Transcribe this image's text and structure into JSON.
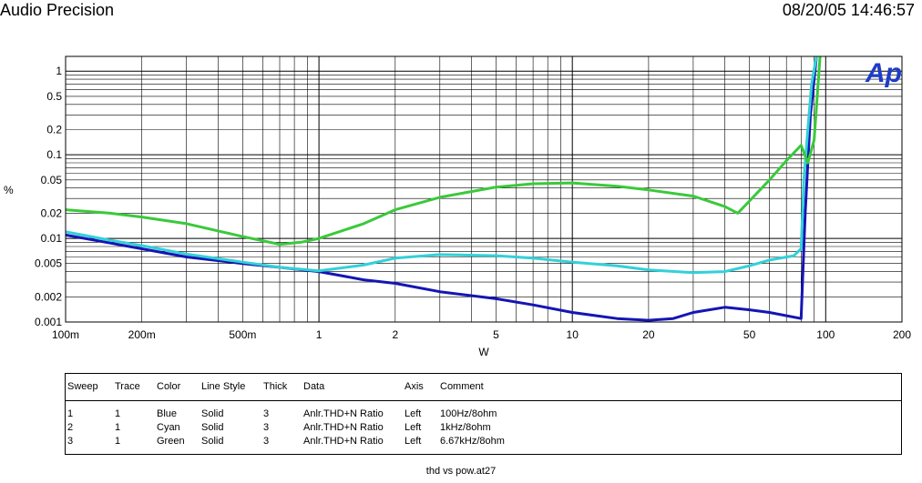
{
  "header": {
    "title": "Audio Precision",
    "timestamp": "08/20/05 14:46:57"
  },
  "logo_text": "Ap",
  "chart_data": {
    "type": "line",
    "xlabel": "W",
    "ylabel": "%",
    "x_scale": "log",
    "y_scale": "log",
    "xlim": [
      0.1,
      200
    ],
    "ylim": [
      0.001,
      1.5
    ],
    "x_ticks": [
      {
        "v": 0.1,
        "label": "100m"
      },
      {
        "v": 0.2,
        "label": "200m"
      },
      {
        "v": 0.5,
        "label": "500m"
      },
      {
        "v": 1,
        "label": "1"
      },
      {
        "v": 2,
        "label": "2"
      },
      {
        "v": 5,
        "label": "5"
      },
      {
        "v": 10,
        "label": "10"
      },
      {
        "v": 20,
        "label": "20"
      },
      {
        "v": 50,
        "label": "50"
      },
      {
        "v": 100,
        "label": "100"
      },
      {
        "v": 200,
        "label": "200"
      }
    ],
    "y_ticks": [
      {
        "v": 1,
        "label": "1"
      },
      {
        "v": 0.5,
        "label": "0.5"
      },
      {
        "v": 0.2,
        "label": "0.2"
      },
      {
        "v": 0.1,
        "label": "0.1"
      },
      {
        "v": 0.05,
        "label": "0.05"
      },
      {
        "v": 0.02,
        "label": "0.02"
      },
      {
        "v": 0.01,
        "label": "0.01"
      },
      {
        "v": 0.005,
        "label": "0.005"
      },
      {
        "v": 0.002,
        "label": "0.002"
      },
      {
        "v": 0.001,
        "label": "0.001"
      }
    ],
    "grid": true,
    "series": [
      {
        "color": "#1515b4",
        "points": [
          [
            0.1,
            0.011
          ],
          [
            0.15,
            0.0088
          ],
          [
            0.2,
            0.0075
          ],
          [
            0.3,
            0.006
          ],
          [
            0.5,
            0.005
          ],
          [
            0.7,
            0.0045
          ],
          [
            1,
            0.004
          ],
          [
            1.5,
            0.0032
          ],
          [
            2,
            0.0029
          ],
          [
            3,
            0.0023
          ],
          [
            5,
            0.0019
          ],
          [
            7,
            0.0016
          ],
          [
            10,
            0.0013
          ],
          [
            15,
            0.0011
          ],
          [
            20,
            0.00105
          ],
          [
            25,
            0.0011
          ],
          [
            30,
            0.0013
          ],
          [
            40,
            0.0015
          ],
          [
            50,
            0.0014
          ],
          [
            60,
            0.0013
          ],
          [
            80,
            0.0011
          ],
          [
            83,
            0.02
          ],
          [
            87,
            0.3
          ],
          [
            92,
            1.5
          ]
        ]
      },
      {
        "color": "#33d0d8",
        "points": [
          [
            0.1,
            0.012
          ],
          [
            0.15,
            0.0095
          ],
          [
            0.2,
            0.0082
          ],
          [
            0.3,
            0.0065
          ],
          [
            0.5,
            0.0052
          ],
          [
            0.7,
            0.0045
          ],
          [
            1,
            0.0041
          ],
          [
            1.5,
            0.0048
          ],
          [
            2,
            0.0058
          ],
          [
            3,
            0.0064
          ],
          [
            5,
            0.0062
          ],
          [
            7,
            0.0058
          ],
          [
            10,
            0.0052
          ],
          [
            15,
            0.0047
          ],
          [
            20,
            0.0042
          ],
          [
            30,
            0.0039
          ],
          [
            40,
            0.004
          ],
          [
            50,
            0.0047
          ],
          [
            60,
            0.0055
          ],
          [
            75,
            0.0062
          ],
          [
            80,
            0.0075
          ],
          [
            82,
            0.05
          ],
          [
            85,
            0.2
          ],
          [
            88,
            0.7
          ],
          [
            92,
            1.5
          ]
        ]
      },
      {
        "color": "#3ac93a",
        "points": [
          [
            0.1,
            0.022
          ],
          [
            0.15,
            0.02
          ],
          [
            0.2,
            0.018
          ],
          [
            0.3,
            0.015
          ],
          [
            0.5,
            0.0105
          ],
          [
            0.7,
            0.0085
          ],
          [
            0.85,
            0.009
          ],
          [
            1,
            0.01
          ],
          [
            1.5,
            0.015
          ],
          [
            2,
            0.022
          ],
          [
            3,
            0.031
          ],
          [
            5,
            0.041
          ],
          [
            7,
            0.045
          ],
          [
            10,
            0.046
          ],
          [
            15,
            0.042
          ],
          [
            20,
            0.038
          ],
          [
            30,
            0.032
          ],
          [
            40,
            0.024
          ],
          [
            45,
            0.02
          ],
          [
            50,
            0.028
          ],
          [
            60,
            0.05
          ],
          [
            70,
            0.085
          ],
          [
            80,
            0.13
          ],
          [
            85,
            0.08
          ],
          [
            90,
            0.15
          ],
          [
            95,
            1.5
          ]
        ]
      }
    ]
  },
  "legend": {
    "headers": [
      "Sweep",
      "Trace",
      "Color",
      "Line Style",
      "Thick",
      "Data",
      "Axis",
      "Comment"
    ],
    "rows": [
      [
        "1",
        "1",
        "Blue",
        "Solid",
        "3",
        "Anlr.THD+N Ratio",
        "Left",
        "100Hz/8ohm"
      ],
      [
        "2",
        "1",
        "Cyan",
        "Solid",
        "3",
        "Anlr.THD+N Ratio",
        "Left",
        "1kHz/8ohm"
      ],
      [
        "3",
        "1",
        "Green",
        "Solid",
        "3",
        "Anlr.THD+N Ratio",
        "Left",
        "6.67kHz/8ohm"
      ]
    ]
  },
  "footer": "thd vs pow.at27"
}
